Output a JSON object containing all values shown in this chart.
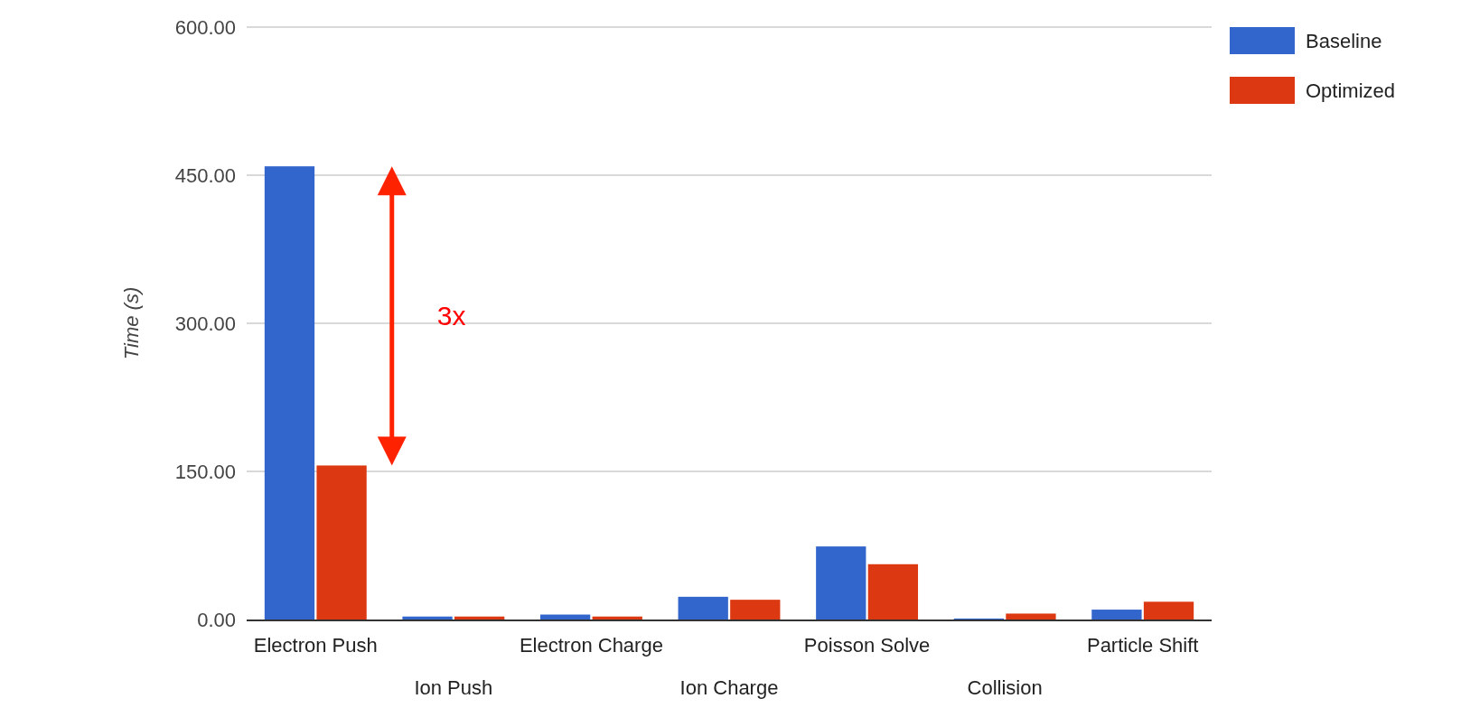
{
  "chart_data": {
    "type": "bar",
    "ylabel": "Time (s)",
    "categories": [
      "Electron Push",
      "Ion Push",
      "Electron Charge",
      "Ion Charge",
      "Poisson Solve",
      "Collision",
      "Particle Shift"
    ],
    "series": [
      {
        "name": "Baseline",
        "color": "#3366cc",
        "values": [
          459,
          3,
          5,
          23,
          74,
          1,
          10
        ]
      },
      {
        "name": "Optimized",
        "color": "#dc3912",
        "values": [
          156,
          3,
          3,
          20,
          56,
          6,
          18
        ]
      }
    ],
    "ylim": [
      0,
      600
    ],
    "yticks": [
      {
        "value": 0,
        "label": "0.00"
      },
      {
        "value": 150,
        "label": "150.00"
      },
      {
        "value": 300,
        "label": "300.00"
      },
      {
        "value": 450,
        "label": "450.00"
      },
      {
        "value": 600,
        "label": "600.00"
      }
    ],
    "grid": "y",
    "legend": "top right",
    "annotations": [
      "3x"
    ]
  }
}
